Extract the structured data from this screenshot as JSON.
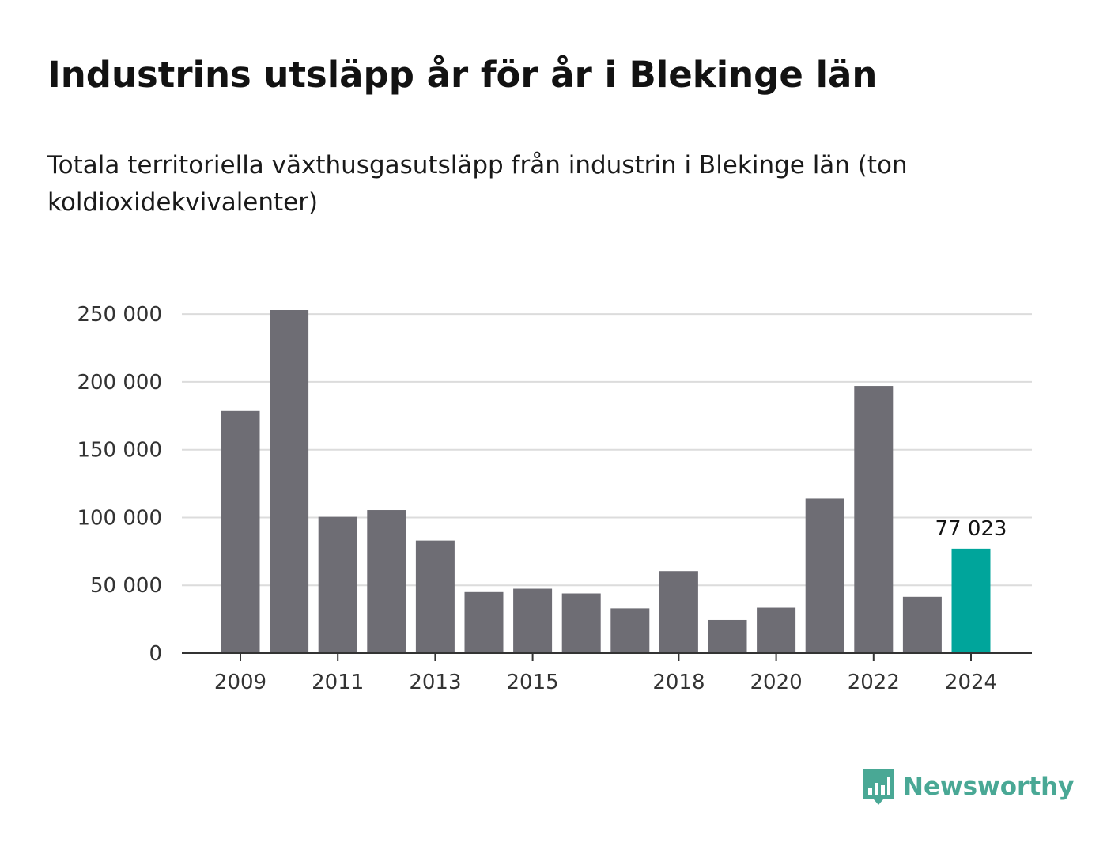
{
  "header": {
    "title": "Industrins utsläpp år för år i Blekinge län",
    "subtitle": "Totala territoriella växthusgasutsläpp från industrin i Blekinge län (ton koldioxidekvivalenter)"
  },
  "brand": {
    "name": "Newsworthy",
    "color": "#49a895",
    "icon": "newsworthy-chart-bubble-icon"
  },
  "chart_data": {
    "type": "bar",
    "categories": [
      "2009",
      "2010",
      "2011",
      "2012",
      "2013",
      "2014",
      "2015",
      "2016",
      "2017",
      "2018",
      "2019",
      "2020",
      "2021",
      "2022",
      "2023",
      "2024"
    ],
    "values": [
      178500,
      253000,
      100500,
      105500,
      83000,
      45000,
      47500,
      44000,
      33000,
      60500,
      24500,
      33500,
      114000,
      197000,
      41500,
      77023
    ],
    "x_tick_labels": [
      "2009",
      "2011",
      "2013",
      "2015",
      "2018",
      "2020",
      "2022",
      "2024"
    ],
    "y_ticks": [
      0,
      50000,
      100000,
      150000,
      200000,
      250000
    ],
    "y_tick_labels": [
      "0",
      "50 000",
      "100 000",
      "150 000",
      "200 000",
      "250 000"
    ],
    "ylim": [
      0,
      253000
    ],
    "highlight_index": 15,
    "annotation": "77 023",
    "grid": true,
    "colors": {
      "bar": "#6e6d74",
      "highlight": "#00a59b",
      "grid": "#dcdcdc",
      "axis": "#333333"
    }
  }
}
